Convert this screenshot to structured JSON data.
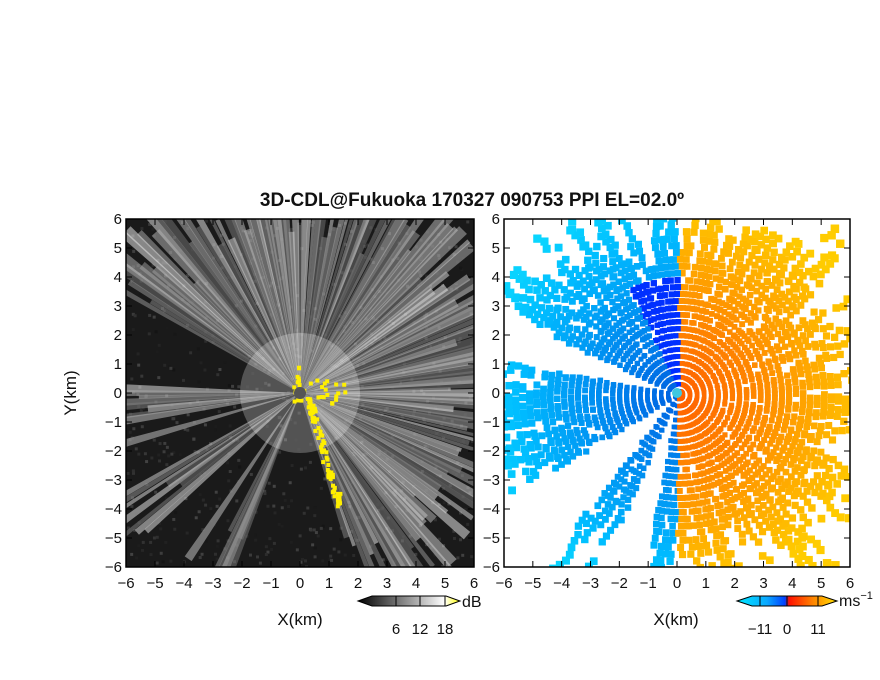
{
  "title": "3D-CDL@Fukuoka 170327 090753 PPI EL=02.0º",
  "chart_data": [
    {
      "type": "heatmap",
      "name": "reflectivity",
      "xlabel": "X(km)",
      "ylabel": "Y(km)",
      "xlim": [
        -6,
        6
      ],
      "ylim": [
        -6,
        6
      ],
      "xticks": [
        "−6",
        "−5",
        "−4",
        "−3",
        "−2",
        "−1",
        "0",
        "1",
        "2",
        "3",
        "4",
        "5",
        "6"
      ],
      "yticks": [
        "6",
        "5",
        "4",
        "3",
        "2",
        "1",
        "0",
        "−1",
        "−2",
        "−3",
        "−4",
        "−5",
        "−6"
      ],
      "colorbar": {
        "unit": "dB",
        "ticks": [
          "6",
          "12",
          "18"
        ],
        "range": [
          0,
          24
        ],
        "palette": [
          "#000000",
          "#ffffff",
          "#ffff00"
        ]
      },
      "radar_center": [
        0,
        0
      ]
    },
    {
      "type": "heatmap",
      "name": "doppler-velocity",
      "xlabel": "X(km)",
      "xlim": [
        -6,
        6
      ],
      "ylim": [
        -6,
        6
      ],
      "xticks": [
        "−6",
        "−5",
        "−4",
        "−3",
        "−2",
        "−1",
        "0",
        "1",
        "2",
        "3",
        "4",
        "5",
        "6"
      ],
      "yticks": [
        "6",
        "5",
        "4",
        "3",
        "2",
        "1",
        "0",
        "−1",
        "−2",
        "−3",
        "−4",
        "−5",
        "−6"
      ],
      "colorbar": {
        "unit": "ms",
        "unit_superscript": "−1",
        "ticks": [
          "−11",
          "0",
          "11"
        ],
        "range": [
          -16,
          16
        ],
        "palette": [
          "#00e0ff",
          "#0050ff",
          "#ff2000",
          "#ffe000"
        ]
      },
      "radar_center": [
        0,
        0
      ]
    }
  ]
}
